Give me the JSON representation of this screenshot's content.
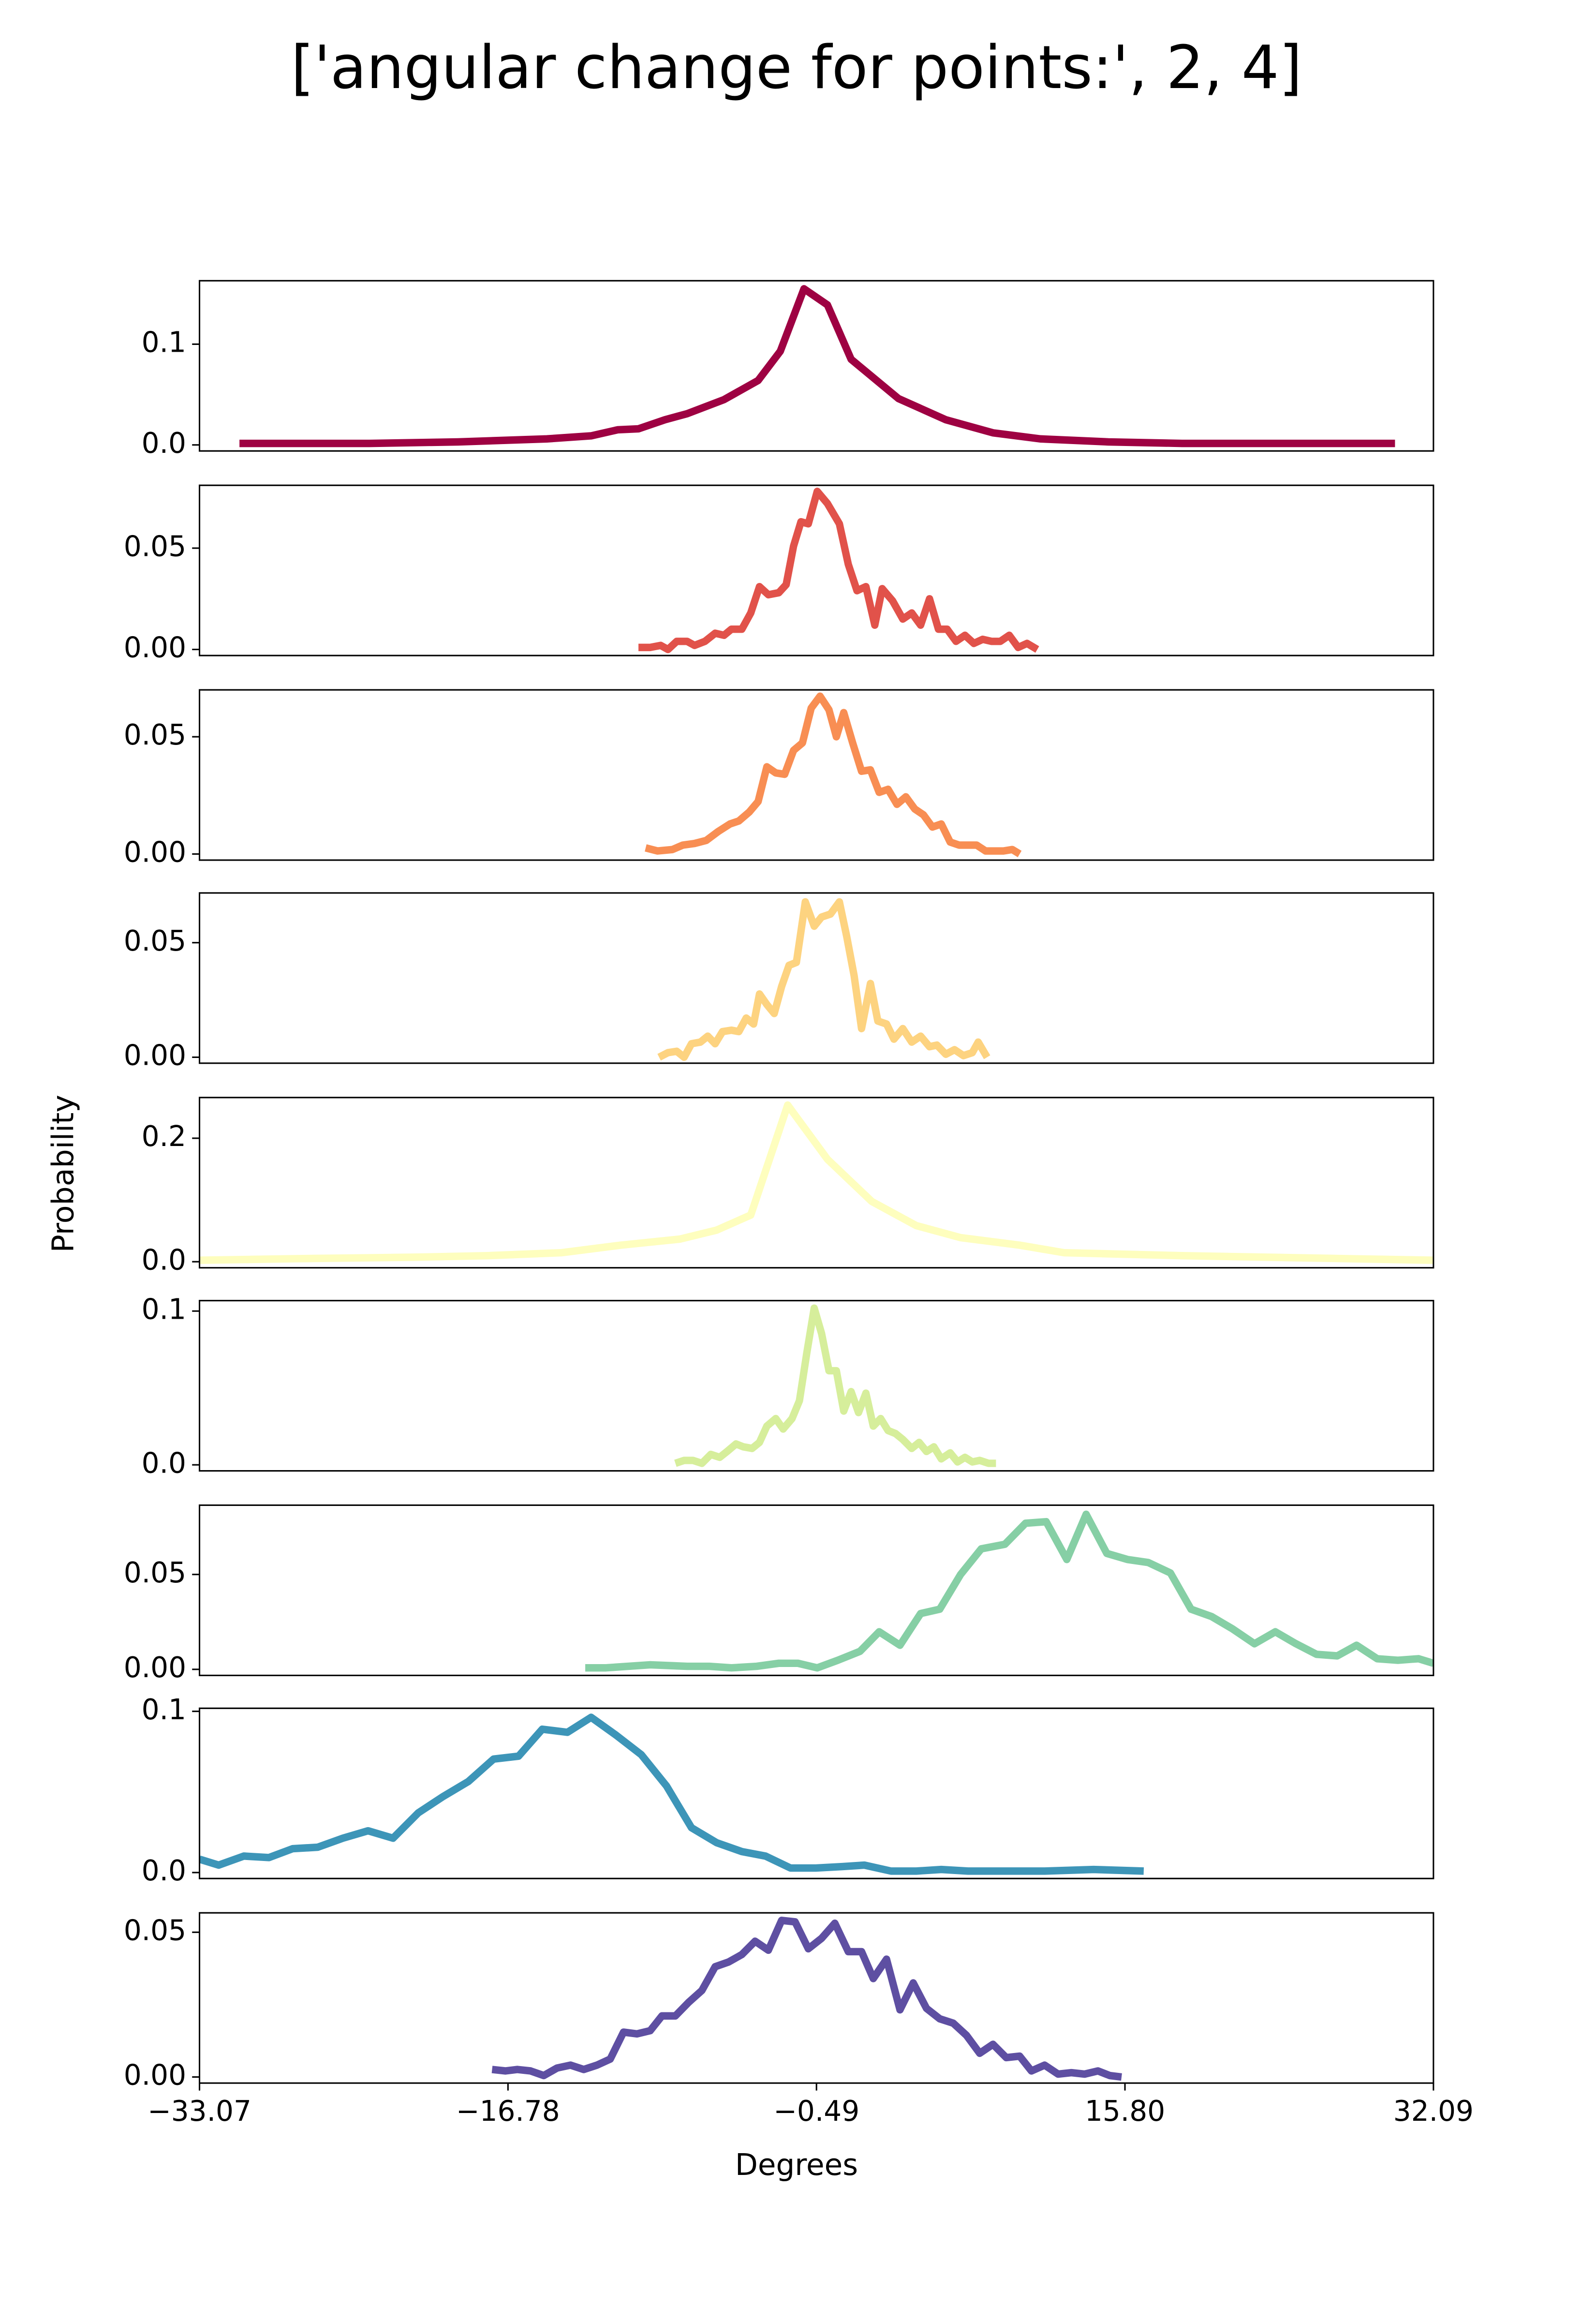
{
  "title": "['angular change for points:', 2, 4]",
  "xlabel": "Degrees",
  "ylabel": "Probability",
  "xlim": [
    -33.07,
    32.09
  ],
  "xticks": [
    {
      "value": -33.07,
      "label": "−33.07"
    },
    {
      "value": -16.78,
      "label": "−16.78"
    },
    {
      "value": -0.49,
      "label": "−0.49"
    },
    {
      "value": 15.8,
      "label": "15.80"
    },
    32.09
  ],
  "chart_data": [
    {
      "type": "line",
      "color": "#9e0142",
      "ylim": [
        -0.006,
        0.163
      ],
      "yticks": [
        {
          "value": 0,
          "label": "0.0"
        },
        0.1
      ],
      "x": [
        -30.96,
        -24.1,
        -19.41,
        -14.73,
        -12.39,
        -10.99,
        -9.89,
        -8.49,
        -7.32,
        -5.37,
        -3.57,
        -2.4,
        -1.15,
        0.09,
        1.34,
        3.84,
        6.34,
        8.83,
        11.33,
        14.92,
        18.82,
        30.06
      ],
      "values": [
        0.0015,
        0.0015,
        0.003,
        0.006,
        0.009,
        0.015,
        0.016,
        0.025,
        0.031,
        0.045,
        0.064,
        0.093,
        0.155,
        0.139,
        0.085,
        0.046,
        0.025,
        0.012,
        0.006,
        0.003,
        0.0015,
        0.0015
      ]
    },
    {
      "type": "line",
      "color": "#e1524a",
      "ylim": [
        -0.003,
        0.081
      ],
      "yticks": [
        {
          "value": 0,
          "label": "0.00"
        },
        0.05
      ],
      "x": [
        -9.89,
        -9.27,
        -8.72,
        -8.33,
        -7.87,
        -7.32,
        -6.93,
        -6.38,
        -5.84,
        -5.37,
        -4.98,
        -4.43,
        -3.96,
        -3.5,
        -3.03,
        -2.48,
        -2.09,
        -1.7,
        -1.31,
        -0.92,
        -0.45,
        0.09,
        0.72,
        1.19,
        1.65,
        2.12,
        2.59,
        2.98,
        3.53,
        4.07,
        4.54,
        5.01,
        5.48,
        5.95,
        6.41,
        6.88,
        7.35,
        7.82,
        8.29,
        8.75,
        9.22,
        9.69,
        10.16,
        10.63,
        11.17
      ],
      "values": [
        0.001,
        0.001,
        0.002,
        0,
        0.004,
        0.004,
        0.002,
        0.004,
        0.008,
        0.007,
        0.01,
        0.01,
        0.018,
        0.031,
        0.027,
        0.028,
        0.032,
        0.051,
        0.063,
        0.062,
        0.078,
        0.072,
        0.062,
        0.042,
        0.029,
        0.031,
        0.012,
        0.03,
        0.024,
        0.015,
        0.018,
        0.012,
        0.025,
        0.01,
        0.01,
        0.004,
        0.007,
        0.003,
        0.005,
        0.004,
        0.004,
        0.007,
        0.001,
        0.003,
        0
      ]
    },
    {
      "type": "line",
      "color": "#f88e53",
      "ylim": [
        -0.0026,
        0.07
      ],
      "yticks": [
        {
          "value": 0,
          "label": "0.00"
        },
        0.05
      ],
      "x": [
        -9.51,
        -8.88,
        -8.1,
        -7.55,
        -6.93,
        -6.31,
        -5.68,
        -5.06,
        -4.59,
        -4.04,
        -3.57,
        -3.11,
        -2.64,
        -2.17,
        -1.7,
        -1.23,
        -0.77,
        -0.3,
        0.17,
        0.56,
        0.95,
        1.42,
        1.89,
        2.36,
        2.82,
        3.29,
        3.76,
        4.23,
        4.7,
        5.16,
        5.63,
        6.1,
        6.57,
        7.04,
        7.51,
        7.97,
        8.44,
        8.91,
        9.38,
        9.85,
        10.24
      ],
      "values": [
        0.0026,
        0.0013,
        0.0019,
        0.0038,
        0.0045,
        0.0058,
        0.0096,
        0.0128,
        0.0141,
        0.0179,
        0.0224,
        0.0372,
        0.0346,
        0.034,
        0.0442,
        0.0474,
        0.0622,
        0.0673,
        0.0615,
        0.05,
        0.0603,
        0.0474,
        0.0353,
        0.0359,
        0.0263,
        0.0276,
        0.0212,
        0.0244,
        0.0192,
        0.0167,
        0.0115,
        0.0128,
        0.0051,
        0.0038,
        0.0038,
        0.0038,
        0.0013,
        0.0013,
        0.0013,
        0.0019,
        0
      ]
    },
    {
      "type": "line",
      "color": "#fdd380",
      "ylim": [
        -0.0026,
        0.0717
      ],
      "yticks": [
        {
          "value": 0,
          "label": "0.00"
        },
        0.05
      ],
      "x": [
        -8.8,
        -8.33,
        -7.87,
        -7.48,
        -7.09,
        -6.62,
        -6.23,
        -5.84,
        -5.45,
        -4.98,
        -4.59,
        -4.2,
        -3.81,
        -3.5,
        -3.11,
        -2.72,
        -2.33,
        -1.94,
        -1.55,
        -1.08,
        -0.61,
        -0.22,
        0.25,
        0.72,
        1.11,
        1.5,
        1.89,
        2.36,
        2.75,
        3.21,
        3.6,
        4.07,
        4.54,
        5.01,
        5.48,
        5.87,
        6.34,
        6.8,
        7.27,
        7.74,
        8.05,
        8.52
      ],
      "values": [
        0,
        0.002,
        0.0026,
        0,
        0.0059,
        0.0066,
        0.0092,
        0.0059,
        0.0112,
        0.0118,
        0.0112,
        0.0171,
        0.0145,
        0.0276,
        0.023,
        0.0191,
        0.0309,
        0.0401,
        0.0414,
        0.0678,
        0.0572,
        0.0612,
        0.0625,
        0.0678,
        0.0526,
        0.0355,
        0.0125,
        0.0322,
        0.0158,
        0.0145,
        0.0079,
        0.0125,
        0.0066,
        0.0092,
        0.0046,
        0.0053,
        0.0013,
        0.0033,
        0.0007,
        0.002,
        0.0066,
        0
      ]
    },
    {
      "type": "line",
      "color": "#fefebe",
      "ylim": [
        -0.0098,
        0.2659
      ],
      "yticks": [
        {
          "value": 0,
          "label": "0.0"
        },
        0.2
      ],
      "x": [
        -33.07,
        -28.0,
        -21.76,
        -17.85,
        -13.95,
        -10.83,
        -7.71,
        -5.76,
        -3.96,
        -2.01,
        0.09,
        2.43,
        4.78,
        7.12,
        10.24,
        12.58,
        18.82,
        32.09
      ],
      "values": [
        0.0024,
        0.0049,
        0.0073,
        0.0098,
        0.0146,
        0.0268,
        0.0366,
        0.0512,
        0.0756,
        0.2537,
        0.1659,
        0.0976,
        0.0585,
        0.039,
        0.0268,
        0.0146,
        0.0098,
        0.0024
      ]
    },
    {
      "type": "line",
      "color": "#d6ee9b",
      "ylim": [
        -0.0039,
        0.1068
      ],
      "yticks": [
        {
          "value": 0,
          "label": "0.0"
        },
        0.1
      ],
      "x": [
        -7.94,
        -7.48,
        -7.01,
        -6.54,
        -6.07,
        -5.6,
        -5.21,
        -4.74,
        -4.35,
        -3.89,
        -3.5,
        -3.11,
        -2.64,
        -2.25,
        -1.78,
        -1.39,
        -1.0,
        -0.61,
        -0.22,
        0.17,
        0.56,
        0.95,
        1.34,
        1.73,
        2.12,
        2.51,
        2.9,
        3.29,
        3.68,
        4.07,
        4.54,
        4.93,
        5.32,
        5.71,
        6.1,
        6.57,
        6.96,
        7.35,
        7.74,
        8.13,
        8.6,
        8.99
      ],
      "values": [
        0.001,
        0.0029,
        0.0029,
        0.001,
        0.0068,
        0.0049,
        0.0087,
        0.0136,
        0.0117,
        0.0107,
        0.0146,
        0.0252,
        0.0301,
        0.0233,
        0.0301,
        0.0417,
        0.0728,
        0.1019,
        0.0854,
        0.0612,
        0.0612,
        0.035,
        0.0476,
        0.034,
        0.0466,
        0.0252,
        0.0301,
        0.0223,
        0.0204,
        0.0165,
        0.0107,
        0.0146,
        0.0087,
        0.0117,
        0.0039,
        0.0078,
        0.0019,
        0.0049,
        0.0019,
        0.0029,
        0.001,
        0.001
      ]
    },
    {
      "type": "line",
      "color": "#86cfa5",
      "ylim": [
        -0.0032,
        0.0865
      ],
      "yticks": [
        {
          "value": 0,
          "label": "0.00"
        },
        0.05
      ],
      "x": [
        -12.7,
        -11.61,
        -9.27,
        -7.32,
        -6.15,
        -4.98,
        -3.65,
        -2.48,
        -1.47,
        -0.45,
        0.64,
        1.81,
        2.82,
        3.92,
        5.01,
        6.02,
        7.12,
        8.21,
        9.46,
        10.55,
        11.64,
        12.73,
        13.75,
        14.84,
        15.93,
        17.03,
        18.2,
        19.29,
        20.38,
        21.47,
        22.64,
        23.74,
        24.83,
        25.92,
        27.01,
        28.03,
        29.12,
        30.21,
        31.3,
        32.09
      ],
      "values": [
        0.0008,
        0.0008,
        0.0024,
        0.0016,
        0.0016,
        0.0008,
        0.0016,
        0.0032,
        0.0032,
        0.0008,
        0.0048,
        0.0095,
        0.0198,
        0.0127,
        0.0294,
        0.0317,
        0.05,
        0.0635,
        0.0659,
        0.077,
        0.0778,
        0.0579,
        0.0817,
        0.0611,
        0.0579,
        0.0563,
        0.0508,
        0.0317,
        0.0278,
        0.0214,
        0.0135,
        0.0198,
        0.0135,
        0.0079,
        0.0071,
        0.0127,
        0.0056,
        0.0048,
        0.0056,
        0.0032
      ]
    },
    {
      "type": "line",
      "color": "#3d95b8",
      "ylim": [
        -0.0037,
        0.1019
      ],
      "yticks": [
        {
          "value": 0,
          "label": "0.0"
        },
        0.1
      ],
      "x": [
        -33.07,
        -32.06,
        -30.73,
        -29.4,
        -28.15,
        -26.83,
        -25.5,
        -24.17,
        -22.85,
        -21.52,
        -20.2,
        -18.87,
        -17.54,
        -16.22,
        -14.97,
        -13.64,
        -12.39,
        -11.07,
        -9.74,
        -8.41,
        -7.09,
        -5.76,
        -4.43,
        -3.18,
        -1.86,
        -0.53,
        0.87,
        2.04,
        3.45,
        4.78,
        6.1,
        7.51,
        8.83,
        10.24,
        11.56,
        14.14,
        16.79
      ],
      "values": [
        0.0083,
        0.0046,
        0.0102,
        0.0093,
        0.0148,
        0.0157,
        0.0213,
        0.0259,
        0.0213,
        0.037,
        0.0472,
        0.0565,
        0.0704,
        0.0722,
        0.0889,
        0.087,
        0.0963,
        0.0852,
        0.0731,
        0.0537,
        0.0278,
        0.0185,
        0.013,
        0.0102,
        0.0028,
        0.0028,
        0.0037,
        0.0046,
        0.0009,
        0.0009,
        0.0019,
        0.0009,
        0.0009,
        0.0009,
        0.0009,
        0.0019,
        0.0009
      ]
    },
    {
      "type": "line",
      "color": "#5e4fa2",
      "ylim": [
        -0.0021,
        0.0567
      ],
      "yticks": [
        {
          "value": 0,
          "label": "0.00"
        },
        0.05
      ],
      "x": [
        -17.62,
        -16.92,
        -16.29,
        -15.59,
        -14.89,
        -14.19,
        -13.48,
        -12.78,
        -12.08,
        -11.38,
        -10.68,
        -9.97,
        -9.27,
        -8.65,
        -7.94,
        -7.24,
        -6.54,
        -5.84,
        -5.14,
        -4.43,
        -3.73,
        -3.03,
        -2.33,
        -1.62,
        -0.92,
        -0.22,
        0.48,
        1.19,
        1.89,
        2.51,
        3.21,
        3.92,
        4.62,
        5.32,
        6.02,
        6.73,
        7.43,
        8.13,
        8.83,
        9.53,
        10.24,
        10.86,
        11.56,
        12.27,
        12.97,
        13.67,
        14.37,
        15.0,
        15.62
      ],
      "values": [
        0.0026,
        0.0021,
        0.0026,
        0.0021,
        0.0005,
        0.0031,
        0.0041,
        0.0026,
        0.0041,
        0.0062,
        0.0155,
        0.0149,
        0.016,
        0.0211,
        0.0211,
        0.0258,
        0.0299,
        0.0381,
        0.0397,
        0.0423,
        0.0469,
        0.0438,
        0.0541,
        0.0536,
        0.0443,
        0.0479,
        0.0531,
        0.0433,
        0.0433,
        0.034,
        0.0407,
        0.0232,
        0.0325,
        0.0237,
        0.0201,
        0.0186,
        0.0144,
        0.0082,
        0.0113,
        0.0067,
        0.0072,
        0.0021,
        0.0041,
        0.001,
        0.0015,
        0.001,
        0.0021,
        0.0005,
        0
      ]
    }
  ]
}
